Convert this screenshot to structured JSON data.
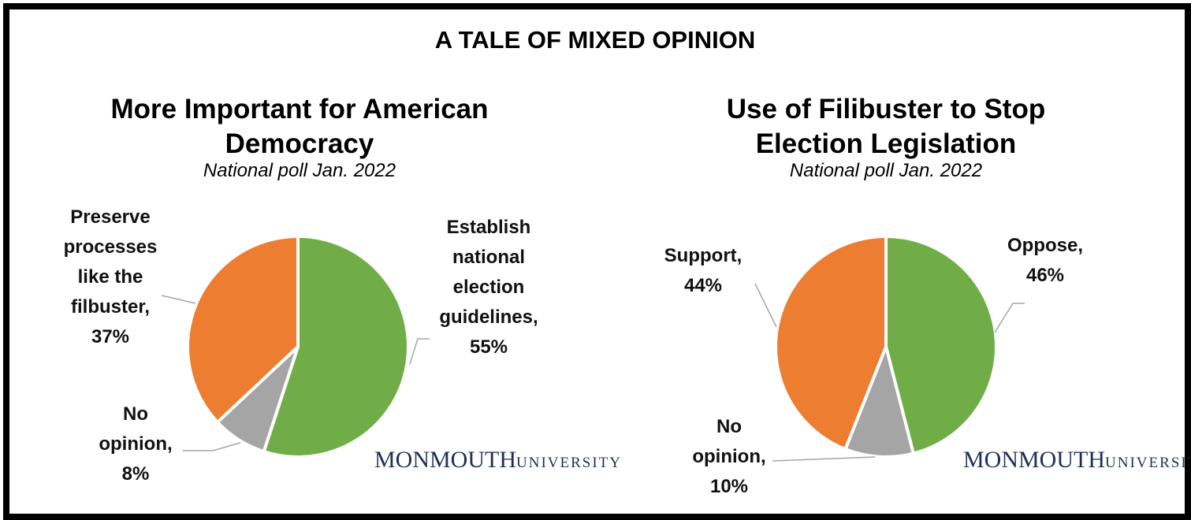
{
  "title": "A TALE OF MIXED OPINION",
  "branding": {
    "name": "MONMOUTH",
    "subname": "UNIVERSITY"
  },
  "chart_data": [
    {
      "type": "pie",
      "title": "More Important for American Democracy",
      "subtitle": "National poll Jan. 2022",
      "categories": [
        "Establish national election guidelines,",
        "No opinion,",
        "Preserve processes like the filbuster,"
      ],
      "values": [
        55,
        8,
        37
      ],
      "value_labels": [
        "55%",
        "8%",
        "37%"
      ],
      "colors": [
        "#70ad47",
        "#a5a5a5",
        "#ed7d31"
      ]
    },
    {
      "type": "pie",
      "title": "Use of Filibuster to Stop Election Legislation",
      "subtitle": "National poll Jan. 2022",
      "categories": [
        "Oppose,",
        "No opinion,",
        "Support,"
      ],
      "values": [
        46,
        10,
        44
      ],
      "value_labels": [
        "46%",
        "10%",
        "44%"
      ],
      "colors": [
        "#70ad47",
        "#a5a5a5",
        "#ed7d31"
      ]
    }
  ]
}
